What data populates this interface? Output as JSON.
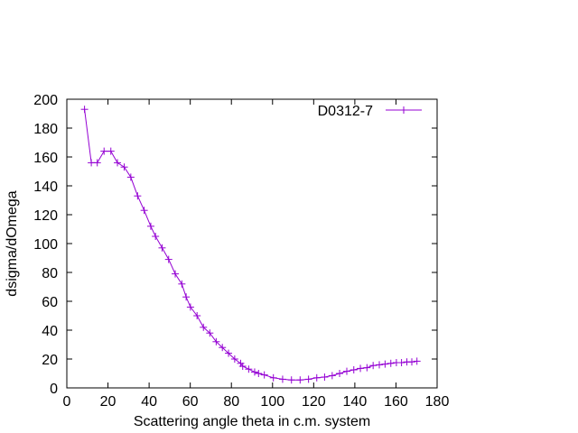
{
  "chart_data": {
    "type": "line",
    "title": "",
    "xlabel": "Scattering angle theta in c.m. system",
    "ylabel": "dsigma/dOmega",
    "xlim": [
      0,
      180
    ],
    "ylim": [
      0,
      200
    ],
    "x_ticks": [
      0,
      20,
      40,
      60,
      80,
      100,
      120,
      140,
      160,
      180
    ],
    "y_ticks": [
      0,
      20,
      40,
      60,
      80,
      100,
      120,
      140,
      160,
      180,
      200
    ],
    "grid": false,
    "legend_position": "top-right",
    "series": [
      {
        "name": "D0312-7",
        "color": "#9400d3",
        "marker": "plus",
        "x": [
          8.6,
          11.9,
          14.8,
          18.1,
          21.4,
          24.6,
          27.9,
          31.1,
          34.4,
          37.6,
          40.8,
          43.1,
          46.3,
          49.5,
          52.7,
          55.9,
          58.0,
          60.1,
          63.3,
          66.4,
          69.5,
          72.6,
          75.6,
          78.6,
          81.6,
          84.5,
          85.5,
          88.4,
          91.3,
          93.2,
          96.0,
          100.4,
          104.9,
          109.2,
          113.4,
          117.5,
          121.5,
          125.3,
          129.0,
          132.6,
          136.1,
          139.5,
          142.7,
          145.9,
          148.9,
          151.9,
          154.7,
          157.5,
          160.2,
          162.7,
          165.3,
          167.7,
          170.2
        ],
        "y": [
          193,
          156,
          156,
          164,
          164,
          156,
          153,
          146,
          133,
          123,
          112,
          105,
          97,
          89,
          79,
          72,
          63,
          56,
          50,
          42,
          38,
          32,
          28,
          24,
          20,
          17,
          15,
          13,
          11,
          10,
          9,
          7,
          6,
          5.5,
          5.5,
          6,
          7,
          7.5,
          8.5,
          10,
          11.5,
          12.5,
          13.5,
          14,
          15.5,
          16,
          16.5,
          17,
          17.5,
          17.5,
          18,
          18,
          18.5
        ]
      }
    ]
  }
}
